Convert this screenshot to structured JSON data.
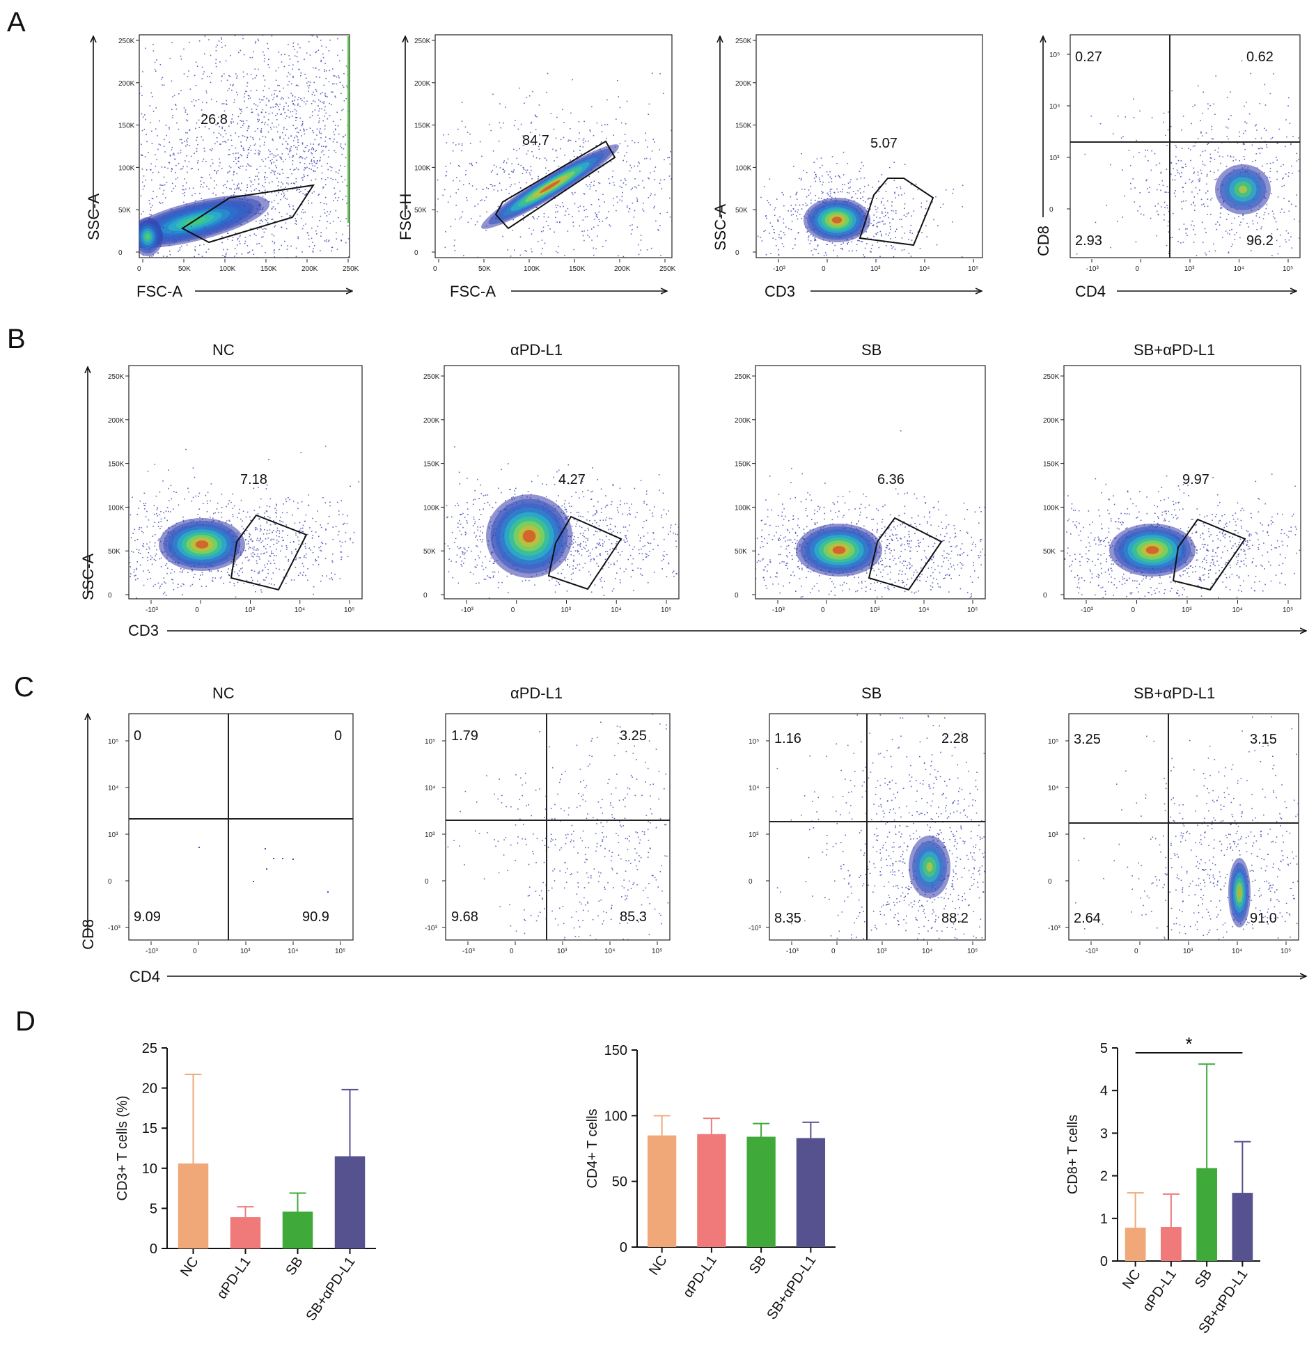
{
  "panels": {
    "A": {
      "letter": "A",
      "plots": [
        {
          "name": "a1-fsc-ssc",
          "xlabel": "FSC-A",
          "ylabel": "SSC-A",
          "gate_value": "26.8",
          "xticks": [
            "0",
            "50K",
            "100K",
            "150K",
            "200K",
            "250K"
          ],
          "yticks": [
            "0",
            "50K",
            "100K",
            "150K",
            "200K",
            "250K"
          ]
        },
        {
          "name": "a2-singlets",
          "xlabel": "FSC-A",
          "ylabel": "FSC-H",
          "gate_value": "84.7",
          "xticks": [
            "0",
            "50K",
            "100K",
            "150K",
            "200K",
            "250K"
          ],
          "yticks": [
            "0",
            "50K",
            "100K",
            "150K",
            "200K",
            "250K"
          ]
        },
        {
          "name": "a3-cd3",
          "xlabel": "CD3",
          "ylabel": "SSC-A",
          "gate_value": "5.07",
          "xticks": [
            "-10³",
            "0",
            "10³",
            "10⁴",
            "10⁵"
          ],
          "yticks": [
            "0",
            "50K",
            "100K",
            "150K",
            "200K",
            "250K"
          ]
        },
        {
          "name": "a4-cd4-cd8",
          "xlabel": "CD4",
          "ylabel": "CD8",
          "quadrants": {
            "ul": "0.27",
            "ur": "0.62",
            "ll": "2.93",
            "lr": "96.2"
          },
          "xticks": [
            "-10³",
            "0",
            "10³",
            "10⁴",
            "10⁵"
          ],
          "yticks": [
            "0",
            "10³",
            "10⁴",
            "10⁵"
          ]
        }
      ]
    },
    "B": {
      "letter": "B",
      "xlabel": "CD3",
      "ylabel": "SSC-A",
      "xticks": [
        "-10³",
        "0",
        "10³",
        "10⁴",
        "10⁵"
      ],
      "yticks": [
        "0",
        "50K",
        "100K",
        "150K",
        "200K",
        "250K"
      ],
      "groups": [
        {
          "title": "NC",
          "gate_value": "7.18"
        },
        {
          "title": "αPD-L1",
          "gate_value": "4.27"
        },
        {
          "title": "SB",
          "gate_value": "6.36"
        },
        {
          "title": "SB+αPD-L1",
          "gate_value": "9.97"
        }
      ]
    },
    "C": {
      "letter": "C",
      "xlabel": "CD4",
      "ylabel": "CD8",
      "xticks": [
        "-10³",
        "0",
        "10³",
        "10⁴",
        "10⁵"
      ],
      "yticks": [
        "-10³",
        "0",
        "10³",
        "10⁴",
        "10⁵"
      ],
      "groups": [
        {
          "title": "NC",
          "quadrants": {
            "ul": "0",
            "ur": "0",
            "ll": "9.09",
            "lr": "90.9"
          }
        },
        {
          "title": "αPD-L1",
          "quadrants": {
            "ul": "1.79",
            "ur": "3.25",
            "ll": "9.68",
            "lr": "85.3"
          }
        },
        {
          "title": "SB",
          "quadrants": {
            "ul": "1.16",
            "ur": "2.28",
            "ll": "8.35",
            "lr": "88.2"
          }
        },
        {
          "title": "SB+αPD-L1",
          "quadrants": {
            "ul": "3.25",
            "ur": "3.15",
            "ll": "2.64",
            "lr": "91.0"
          }
        }
      ]
    },
    "D": {
      "letter": "D",
      "colors": {
        "NC": "#F0A878",
        "αPD-L1": "#F07A7A",
        "SB": "#3FAA3A",
        "SB+αPD-L1": "#56528F"
      }
    }
  },
  "chart_data": [
    {
      "type": "bar",
      "title": "",
      "categories": [
        "NC",
        "αPD-L1",
        "SB",
        "SB+αPD-L1"
      ],
      "values": [
        10.6,
        3.9,
        4.6,
        11.5
      ],
      "error_upper": [
        21.7,
        5.2,
        6.9,
        19.8
      ],
      "ylabel": "CD3+ T cells (%)",
      "xlabel": "",
      "ylim": [
        0,
        25
      ],
      "yticks": [
        0,
        5,
        10,
        15,
        20,
        25
      ],
      "significance": null
    },
    {
      "type": "bar",
      "title": "",
      "categories": [
        "NC",
        "αPD-L1",
        "SB",
        "SB+αPD-L1"
      ],
      "values": [
        85,
        86,
        84,
        83
      ],
      "error_upper": [
        100,
        98,
        94,
        95
      ],
      "ylabel": "CD4+ T cells",
      "xlabel": "",
      "ylim": [
        0,
        150
      ],
      "yticks": [
        0,
        50,
        100,
        150
      ],
      "significance": null
    },
    {
      "type": "bar",
      "title": "",
      "categories": [
        "NC",
        "αPD-L1",
        "SB",
        "SB+αPD-L1"
      ],
      "values": [
        0.78,
        0.8,
        2.18,
        1.6
      ],
      "error_upper": [
        1.6,
        1.57,
        4.62,
        2.8
      ],
      "ylabel": "CD8+ T cells",
      "xlabel": "",
      "ylim": [
        0,
        5
      ],
      "yticks": [
        0,
        1,
        2,
        3,
        4,
        5
      ],
      "significance": {
        "from": "NC",
        "to": "SB+αPD-L1",
        "label": "*"
      }
    }
  ]
}
